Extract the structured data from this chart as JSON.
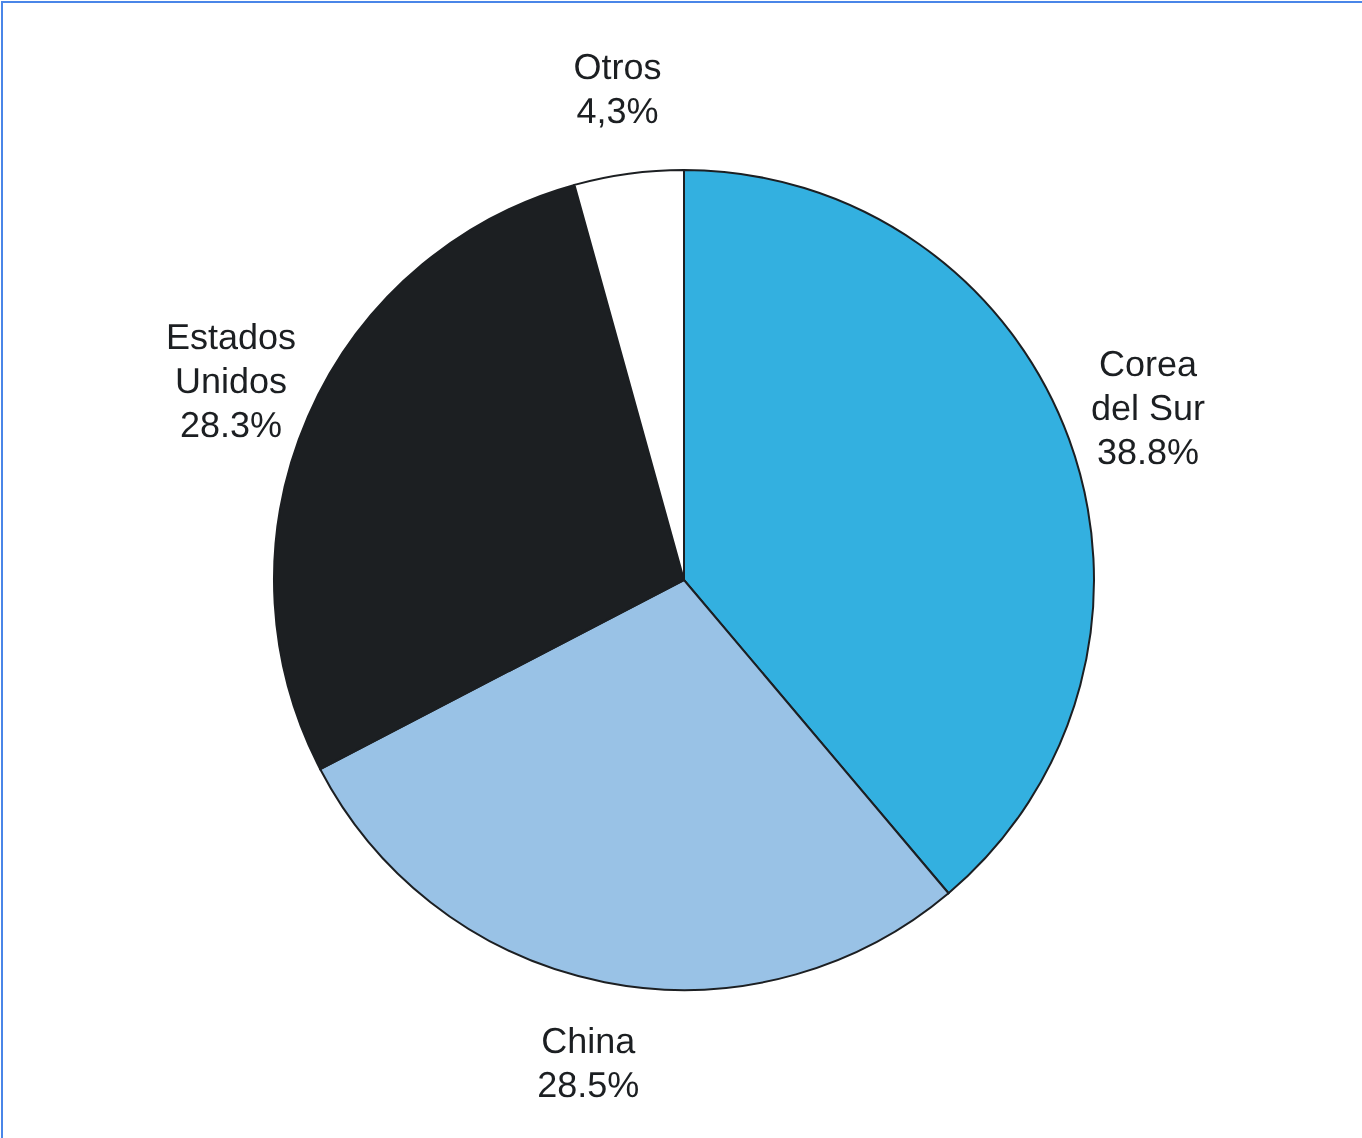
{
  "chart_data": {
    "type": "pie",
    "categories": [
      "Corea del Sur",
      "China",
      "Estados Unidos",
      "Otros"
    ],
    "values": [
      38.8,
      28.5,
      28.3,
      4.3
    ],
    "colors": [
      "#33b0e0",
      "#99c2e6",
      "#1c1f22",
      "#ffffff"
    ],
    "value_labels": [
      "38.8%",
      "28.5%",
      "28.3%",
      "4,3%"
    ]
  }
}
